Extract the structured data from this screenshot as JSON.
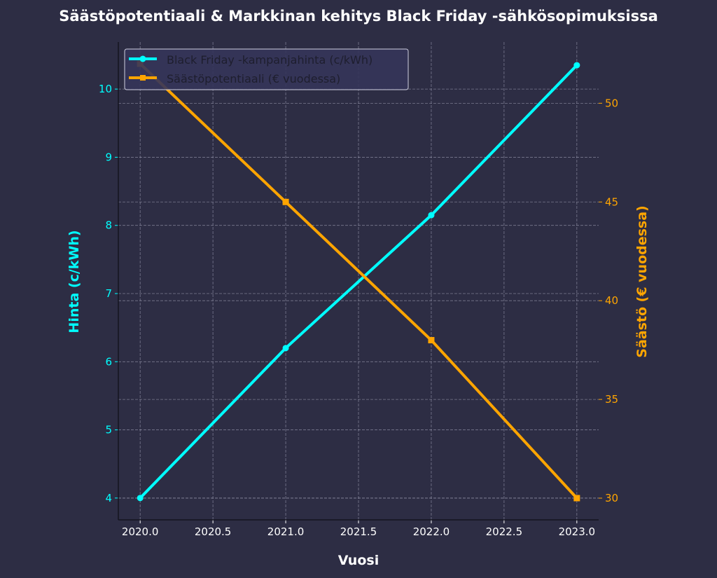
{
  "chart_data": {
    "type": "line",
    "title": "Säästöpotentiaali & Markkinan kehitys Black Friday -sähkösopimuksissa",
    "xlabel": "Vuosi",
    "ylabel_left": "Hinta (c/kWh)",
    "ylabel_right": "Säästö (€ vuodessa)",
    "x": [
      2020,
      2021,
      2022,
      2023
    ],
    "xlim": [
      2019.85,
      2023.15
    ],
    "xticks": [
      2020.0,
      2020.5,
      2021.0,
      2021.5,
      2022.0,
      2022.5,
      2023.0
    ],
    "xtick_labels": [
      "2020.0",
      "2020.5",
      "2021.0",
      "2021.5",
      "2022.0",
      "2022.5",
      "2023.0"
    ],
    "ylim_left": [
      3.68,
      10.69
    ],
    "yticks_left": [
      4,
      5,
      6,
      7,
      8,
      9,
      10
    ],
    "ylim_right": [
      28.9,
      53.1
    ],
    "yticks_right": [
      30,
      35,
      40,
      45,
      50
    ],
    "grid": true,
    "legend_position": "top-left",
    "series": [
      {
        "name": "Black Friday -kampanjahinta (c/kWh)",
        "axis": "left",
        "values": [
          4.0,
          6.2,
          8.15,
          10.35
        ],
        "color": "#00ffff",
        "marker": "circle"
      },
      {
        "name": "Säästöpotentiaali (€ vuodessa)",
        "axis": "right",
        "values": [
          52,
          45,
          38,
          30
        ],
        "color": "#ffa500",
        "marker": "square"
      }
    ]
  },
  "colors": {
    "background": "#2d2d44",
    "left_axis": "#00ffff",
    "right_axis": "#ffa500",
    "text": "#ffffff"
  }
}
